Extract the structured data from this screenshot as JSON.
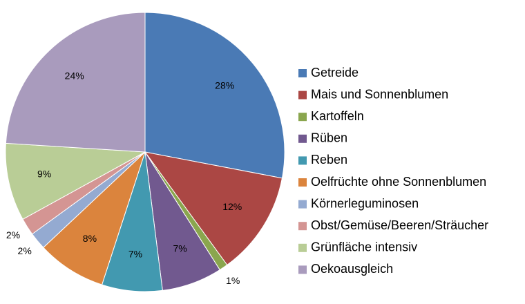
{
  "chart_data": {
    "type": "pie",
    "categories": [
      "Getreide",
      "Mais und Sonnenblumen",
      "Kartoffeln",
      "Rüben",
      "Reben",
      "Oelfrüchte ohne Sonnenblumen",
      "Körnerleguminosen",
      "Obst/Gemüse/Beeren/Sträucher",
      "Grünfläche intensiv",
      "Oekoausgleich"
    ],
    "values": [
      28,
      12,
      1,
      7,
      7,
      8,
      2,
      2,
      9,
      24
    ],
    "value_labels": [
      "28%",
      "12%",
      "1%",
      "7%",
      "7%",
      "8%",
      "2%",
      "2%",
      "9%",
      "24%"
    ],
    "colors": [
      "#4a7ab5",
      "#ab4744",
      "#8aa64e",
      "#71598f",
      "#4299b0",
      "#db843d",
      "#94aad1",
      "#d49593",
      "#b9cd96",
      "#a99bbd"
    ],
    "legend": "right"
  }
}
